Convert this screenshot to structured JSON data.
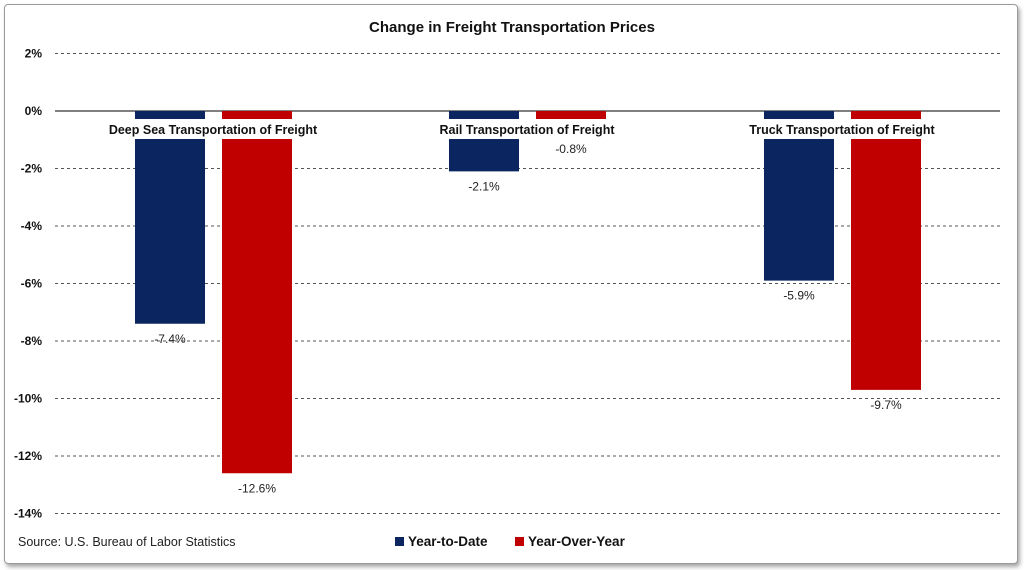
{
  "chart_data": {
    "type": "bar",
    "title": "Change in Freight Transportation Prices",
    "categories": [
      "Deep Sea Transportation of Freight",
      "Rail Transportation of Freight",
      "Truck Transportation of Freight"
    ],
    "series": [
      {
        "name": "Year-to-Date",
        "values": [
          -7.4,
          -2.1,
          -5.9
        ],
        "labels": [
          "-7.4%",
          "-2.1%",
          "-5.9%"
        ],
        "color": "#0b2560"
      },
      {
        "name": "Year-Over-Year",
        "values": [
          -12.6,
          -0.8,
          -9.7
        ],
        "labels": [
          "-12.6%",
          "-0.8%",
          "-9.7%"
        ],
        "color": "#c00000"
      }
    ],
    "ylim": [
      -14,
      2
    ],
    "yticks": [
      2,
      0,
      -2,
      -4,
      -6,
      -8,
      -10,
      -12,
      -14
    ],
    "ytick_labels": [
      "2%",
      "0%",
      "-2%",
      "-4%",
      "-6%",
      "-8%",
      "-10%",
      "-12%",
      "-14%"
    ],
    "grid": "horizontal dashed",
    "legend": "bottom",
    "source": "Source: U.S. Bureau of Labor Statistics"
  }
}
